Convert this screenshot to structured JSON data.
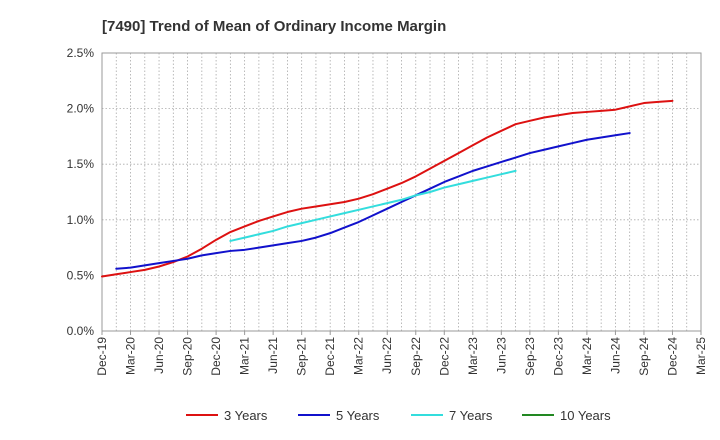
{
  "chart_data": {
    "type": "line",
    "title": "[7490]  Trend of Mean of Ordinary Income Margin",
    "xlabel": "",
    "ylabel": "",
    "ylim": [
      0,
      2.5
    ],
    "y_ticks": [
      "0.0%",
      "0.5%",
      "1.0%",
      "1.5%",
      "2.0%",
      "2.5%"
    ],
    "x_tick_labels": [
      "Dec-19",
      "Mar-20",
      "Jun-20",
      "Sep-20",
      "Dec-20",
      "Mar-21",
      "Jun-21",
      "Sep-21",
      "Dec-21",
      "Mar-22",
      "Jun-22",
      "Sep-22",
      "Dec-22",
      "Mar-23",
      "Jun-23",
      "Sep-23",
      "Dec-23",
      "Mar-24",
      "Jun-24",
      "Sep-24",
      "Dec-24",
      "Mar-25"
    ],
    "grid": true,
    "legend_position": "bottom",
    "series": [
      {
        "name": "3 Years",
        "color": "#dd1111",
        "start_index": 0,
        "values": [
          0.49,
          0.51,
          0.53,
          0.55,
          0.58,
          0.62,
          0.67,
          0.74,
          0.82,
          0.89,
          0.94,
          0.99,
          1.03,
          1.07,
          1.1,
          1.12,
          1.14,
          1.16,
          1.19,
          1.23,
          1.28,
          1.33,
          1.39,
          1.46,
          1.53,
          1.6,
          1.67,
          1.74,
          1.8,
          1.86,
          1.89,
          1.92,
          1.94,
          1.96,
          1.97,
          1.98,
          1.99,
          2.02,
          2.05,
          2.06,
          2.07
        ]
      },
      {
        "name": "5 Years",
        "color": "#1111cc",
        "start_index": 1,
        "values": [
          0.56,
          0.57,
          0.59,
          0.61,
          0.63,
          0.65,
          0.68,
          0.7,
          0.72,
          0.73,
          0.75,
          0.77,
          0.79,
          0.81,
          0.84,
          0.88,
          0.93,
          0.98,
          1.04,
          1.1,
          1.16,
          1.22,
          1.28,
          1.34,
          1.39,
          1.44,
          1.48,
          1.52,
          1.56,
          1.6,
          1.63,
          1.66,
          1.69,
          1.72,
          1.74,
          1.76,
          1.78
        ]
      },
      {
        "name": "7 Years",
        "color": "#33dddd",
        "start_index": 9,
        "values": [
          0.81,
          0.84,
          0.87,
          0.9,
          0.94,
          0.97,
          1.0,
          1.03,
          1.06,
          1.09,
          1.12,
          1.15,
          1.18,
          1.22,
          1.25,
          1.29,
          1.32,
          1.35,
          1.38,
          1.41,
          1.44
        ]
      },
      {
        "name": "10 Years",
        "color": "#228822",
        "start_index": 0,
        "values": []
      }
    ]
  }
}
